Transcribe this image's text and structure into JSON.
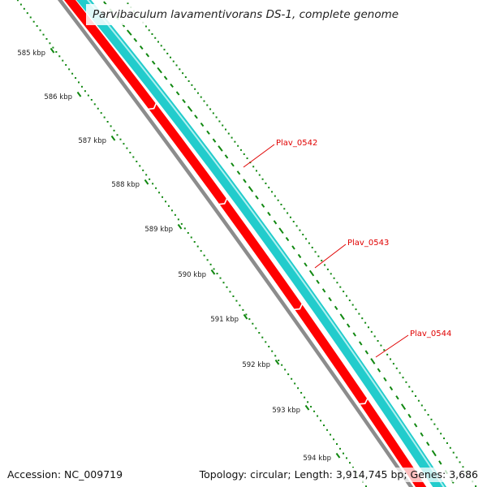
{
  "title": "Parvibaculum lavamentivorans DS-1, complete genome",
  "footer": {
    "accession": "Accession: NC_009719",
    "summary": "Topology: circular; Length: 3,914,745 bp; Genes: 3,686"
  },
  "colors": {
    "backbone": "#8c8c8c",
    "reverse_genes": "#ff0000",
    "forward_genes": "#22cccc",
    "ticks": "#118811",
    "gene_labels": "#e00000"
  },
  "scale": {
    "unit": "kbp",
    "ticks": [
      "585 kbp",
      "586 kbp",
      "587 kbp",
      "588 kbp",
      "589 kbp",
      "590 kbp",
      "591 kbp",
      "592 kbp",
      "593 kbp",
      "594 kbp"
    ]
  },
  "genes": [
    {
      "name": "Plav_0542"
    },
    {
      "name": "Plav_0543"
    },
    {
      "name": "Plav_0544"
    }
  ]
}
